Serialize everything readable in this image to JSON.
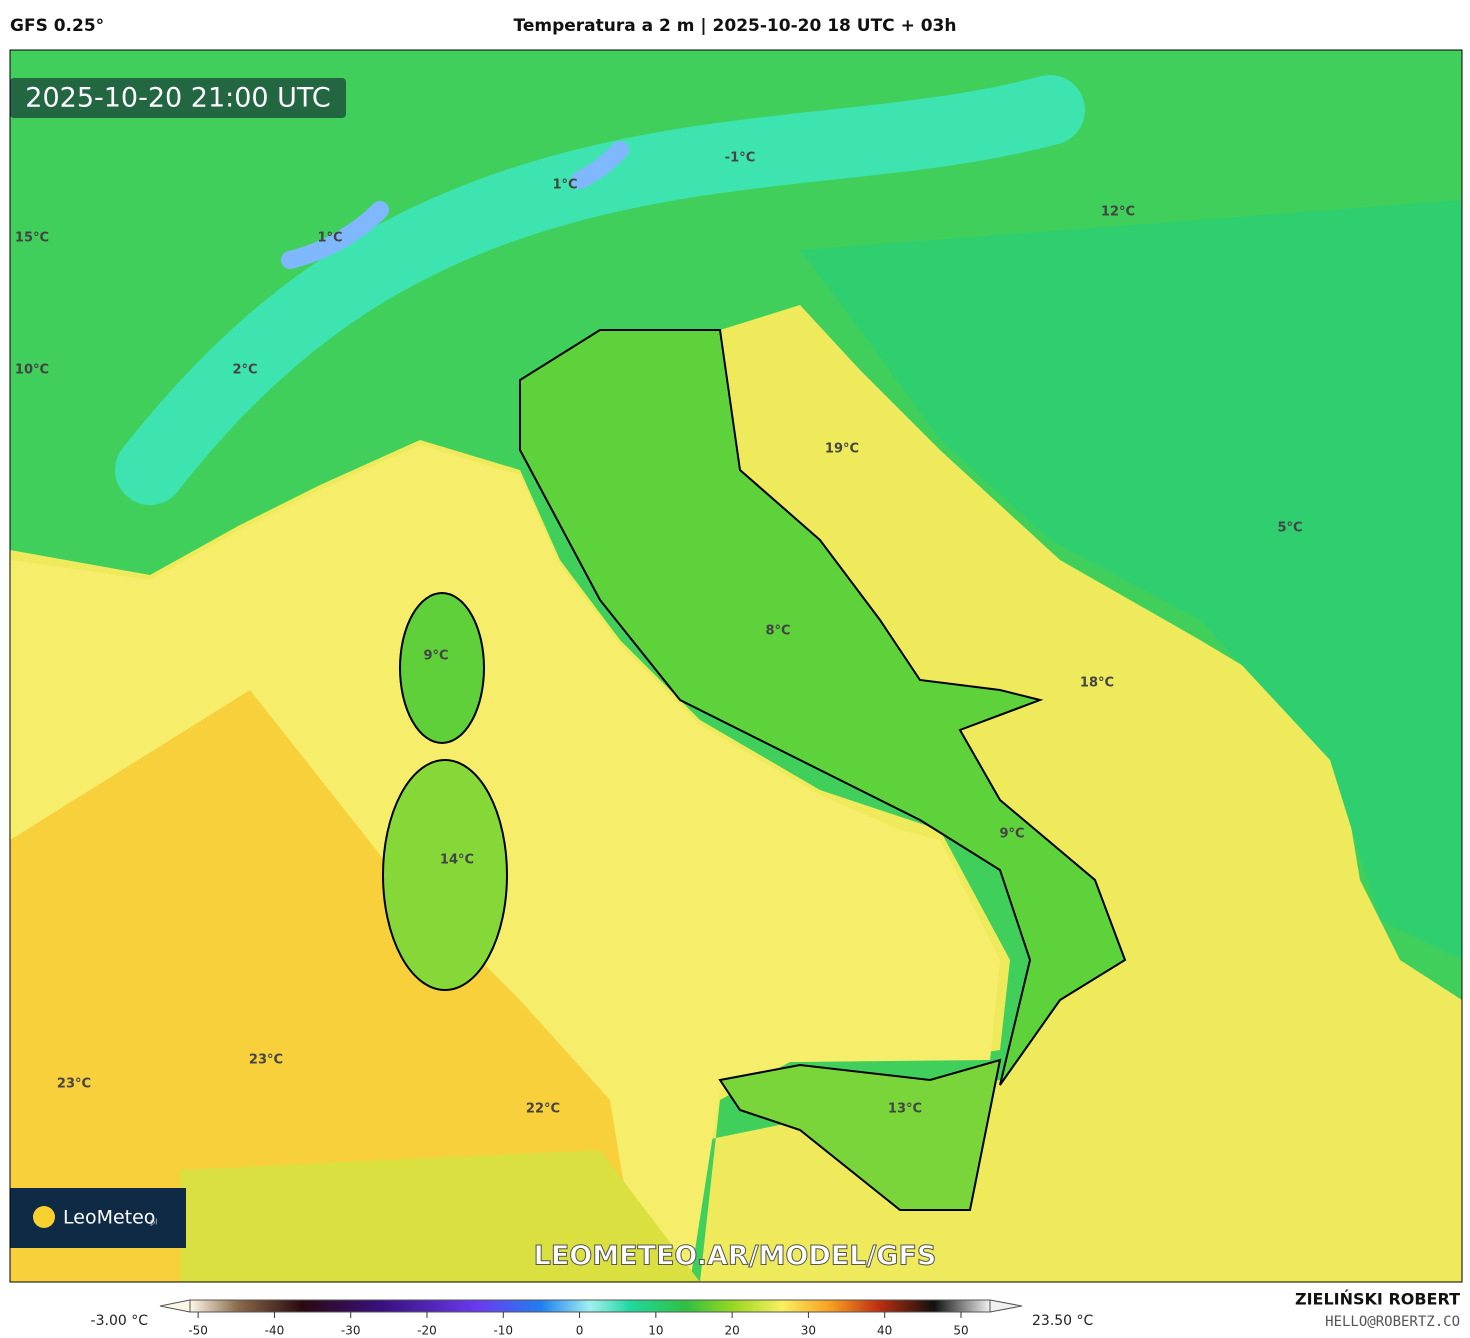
{
  "header": {
    "model": "GFS 0.25°",
    "title": "Temperatura a 2 m | 2025-10-20 18 UTC + 03h"
  },
  "map": {
    "valid_time": "2025-10-20 21:00 UTC",
    "temperature_labels": [
      "-1°C",
      "1°C",
      "1°C",
      "12°C",
      "15°C",
      "10°C",
      "2°C",
      "19°C",
      "5°C",
      "8°C",
      "9°C",
      "18°C",
      "14°C",
      "9°C",
      "23°C",
      "23°C",
      "22°C",
      "13°C"
    ],
    "watermark": "LEOMETEO.AR/MODEL/GFS",
    "logo": {
      "name": "LeoMeteo",
      "suffix": "pl"
    }
  },
  "colorbar": {
    "min_label": "-3.00 °C",
    "max_label": "23.50 °C",
    "range": [
      -55,
      58
    ],
    "ticks": [
      -50,
      -40,
      -30,
      -20,
      -10,
      0,
      10,
      20,
      30,
      40,
      50
    ]
  },
  "footer": {
    "author": "ZIELIŃSKI ROBERT",
    "contact": "HELLO@ROBERTZ.CO"
  }
}
